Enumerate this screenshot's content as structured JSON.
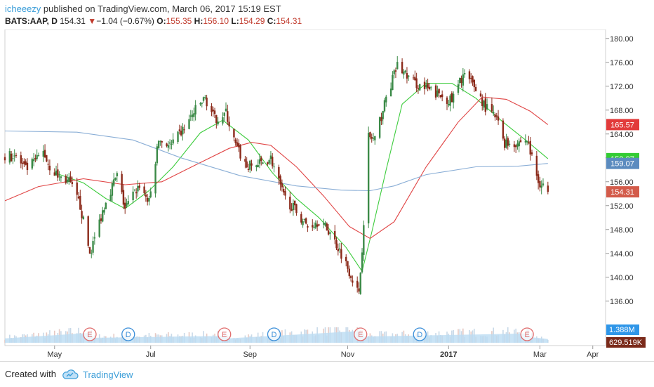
{
  "header": {
    "user": "icheeezy",
    "published_text": " published on TradingView.com, March 06, 2017 15:19 EST",
    "symbol": "BATS:AAP, D",
    "last": "154.31",
    "change": "−1.04 (−0.67%)",
    "open_label": "O:",
    "open": "155.35",
    "high_label": "H:",
    "high": "156.10",
    "low_label": "L:",
    "low": "154.29",
    "close_label": "C:",
    "close": "154.31"
  },
  "footer": {
    "created_with": "Created with",
    "brand": "TradingView"
  },
  "colors": {
    "up": "#3b8a47",
    "down": "#8b2a1a",
    "sma_short": "#3dcc3d",
    "sma_mid": "#e04444",
    "sma_long": "#8aaed6",
    "volume": "#bcdcf3"
  },
  "chart_data": {
    "type": "candlestick",
    "ylim": [
      133.5,
      181.5
    ],
    "yticks": [
      "180.00",
      "176.00",
      "172.00",
      "168.00",
      "164.00",
      "160.00",
      "156.00",
      "152.00",
      "148.00",
      "144.00",
      "140.00",
      "136.00"
    ],
    "xticks": [
      {
        "label": "May",
        "date": "2016-05-02"
      },
      {
        "label": "Jul",
        "date": "2016-07-01"
      },
      {
        "label": "Sep",
        "date": "2016-09-01"
      },
      {
        "label": "Nov",
        "date": "2016-11-01"
      },
      {
        "label": "2017",
        "date": "2017-01-03"
      },
      {
        "label": "Mar",
        "date": "2017-03-01"
      },
      {
        "label": "Apr",
        "date": "2017-04-03"
      }
    ],
    "price_labels": [
      {
        "text": "165.57",
        "value": 165.57,
        "color": "#e23b3b"
      },
      {
        "text": "159.87",
        "value": 159.87,
        "color": "#33cc33"
      },
      {
        "text": "159.07",
        "value": 159.07,
        "color": "#5b8bbf"
      },
      {
        "text": "154.31",
        "value": 154.31,
        "color": "#d35b4a"
      }
    ],
    "volume_labels": [
      {
        "text": "1.388M",
        "color": "#2f96e8"
      },
      {
        "text": "629.519K",
        "color": "#7a2a1a"
      }
    ],
    "events": [
      {
        "type": "E",
        "date": "2016-05-24"
      },
      {
        "type": "D",
        "date": "2016-06-17"
      },
      {
        "type": "E",
        "date": "2016-08-16"
      },
      {
        "type": "D",
        "date": "2016-09-16"
      },
      {
        "type": "E",
        "date": "2016-11-09"
      },
      {
        "type": "D",
        "date": "2016-12-16"
      },
      {
        "type": "E",
        "date": "2017-02-21"
      }
    ],
    "series": [
      {
        "name": "SMA short",
        "color": "#3dcc3d",
        "points": [
          [
            "2016-05-02",
            157.5
          ],
          [
            "2016-05-20",
            155.8
          ],
          [
            "2016-06-03",
            153.2
          ],
          [
            "2016-06-15",
            151.5
          ],
          [
            "2016-06-30",
            154.5
          ],
          [
            "2016-07-15",
            158.5
          ],
          [
            "2016-08-01",
            164.2
          ],
          [
            "2016-08-15",
            166.3
          ],
          [
            "2016-08-31",
            163.0
          ],
          [
            "2016-09-15",
            157.5
          ],
          [
            "2016-09-30",
            153.2
          ],
          [
            "2016-10-14",
            150.0
          ],
          [
            "2016-10-31",
            145.0
          ],
          [
            "2016-11-10",
            141.0
          ],
          [
            "2016-11-16",
            147.5
          ],
          [
            "2016-11-25",
            158.0
          ],
          [
            "2016-12-05",
            169.0
          ],
          [
            "2016-12-20",
            172.5
          ],
          [
            "2017-01-05",
            172.5
          ],
          [
            "2017-01-20",
            170.0
          ],
          [
            "2017-02-06",
            166.0
          ],
          [
            "2017-02-20",
            163.0
          ],
          [
            "2017-03-06",
            159.87
          ]
        ]
      },
      {
        "name": "SMA mid",
        "color": "#e04444",
        "points": [
          [
            "2016-04-01",
            152.8
          ],
          [
            "2016-04-22",
            155.2
          ],
          [
            "2016-05-20",
            156.5
          ],
          [
            "2016-06-15",
            155.5
          ],
          [
            "2016-07-08",
            156.0
          ],
          [
            "2016-07-29",
            158.8
          ],
          [
            "2016-08-19",
            161.6
          ],
          [
            "2016-09-02",
            162.6
          ],
          [
            "2016-09-14",
            162.1
          ],
          [
            "2016-09-30",
            158.5
          ],
          [
            "2016-10-17",
            153.6
          ],
          [
            "2016-11-02",
            148.5
          ],
          [
            "2016-11-15",
            146.5
          ],
          [
            "2016-11-30",
            149.3
          ],
          [
            "2016-12-20",
            158.5
          ],
          [
            "2017-01-09",
            166.0
          ],
          [
            "2017-01-24",
            170.2
          ],
          [
            "2017-02-08",
            169.8
          ],
          [
            "2017-02-23",
            167.8
          ],
          [
            "2017-03-06",
            165.57
          ]
        ]
      },
      {
        "name": "SMA long",
        "color": "#8aaed6",
        "points": [
          [
            "2016-04-01",
            164.5
          ],
          [
            "2016-05-16",
            164.3
          ],
          [
            "2016-06-20",
            163.0
          ],
          [
            "2016-07-20",
            160.0
          ],
          [
            "2016-08-26",
            157.0
          ],
          [
            "2016-09-30",
            155.3
          ],
          [
            "2016-10-28",
            154.6
          ],
          [
            "2016-11-15",
            154.5
          ],
          [
            "2016-11-30",
            155.3
          ],
          [
            "2016-12-20",
            157.2
          ],
          [
            "2017-01-20",
            158.5
          ],
          [
            "2017-02-15",
            158.6
          ],
          [
            "2017-03-06",
            159.07
          ]
        ]
      }
    ],
    "candles": {
      "start": "2016-04-01",
      "end": "2017-03-06",
      "anchors": [
        [
          "2016-04-01",
          160.0
        ],
        [
          "2016-04-07",
          160.5
        ],
        [
          "2016-04-14",
          158.0
        ],
        [
          "2016-04-20",
          159.5
        ],
        [
          "2016-04-25",
          161.0
        ],
        [
          "2016-04-29",
          158.5
        ],
        [
          "2016-05-04",
          157.0
        ],
        [
          "2016-05-11",
          156.0
        ],
        [
          "2016-05-18",
          152.0
        ],
        [
          "2016-05-24",
          144.0
        ],
        [
          "2016-05-27",
          146.5
        ],
        [
          "2016-06-03",
          153.0
        ],
        [
          "2016-06-10",
          157.0
        ],
        [
          "2016-06-15",
          151.5
        ],
        [
          "2016-06-24",
          155.5
        ],
        [
          "2016-06-30",
          152.5
        ],
        [
          "2016-07-06",
          163.0
        ],
        [
          "2016-07-14",
          162.0
        ],
        [
          "2016-07-22",
          165.0
        ],
        [
          "2016-07-29",
          168.0
        ],
        [
          "2016-08-04",
          170.0
        ],
        [
          "2016-08-10",
          166.5
        ],
        [
          "2016-08-17",
          167.5
        ],
        [
          "2016-08-23",
          162.0
        ],
        [
          "2016-08-30",
          158.5
        ],
        [
          "2016-09-07",
          159.0
        ],
        [
          "2016-09-14",
          160.0
        ],
        [
          "2016-09-22",
          153.5
        ],
        [
          "2016-09-30",
          151.0
        ],
        [
          "2016-10-07",
          148.5
        ],
        [
          "2016-10-14",
          149.5
        ],
        [
          "2016-10-21",
          147.5
        ],
        [
          "2016-10-28",
          144.0
        ],
        [
          "2016-11-03",
          140.5
        ],
        [
          "2016-11-08",
          137.0
        ],
        [
          "2016-11-10",
          145.0
        ],
        [
          "2016-11-14",
          163.5
        ],
        [
          "2016-11-18",
          163.0
        ],
        [
          "2016-11-25",
          170.0
        ],
        [
          "2016-12-02",
          175.5
        ],
        [
          "2016-12-07",
          174.0
        ],
        [
          "2016-12-13",
          172.5
        ],
        [
          "2016-12-20",
          171.5
        ],
        [
          "2016-12-28",
          170.5
        ],
        [
          "2017-01-05",
          169.5
        ],
        [
          "2017-01-12",
          174.0
        ],
        [
          "2017-01-19",
          172.0
        ],
        [
          "2017-01-26",
          168.5
        ],
        [
          "2017-02-02",
          166.5
        ],
        [
          "2017-02-07",
          162.5
        ],
        [
          "2017-02-14",
          162.5
        ],
        [
          "2017-02-21",
          163.0
        ],
        [
          "2017-02-24",
          160.0
        ],
        [
          "2017-02-28",
          156.0
        ],
        [
          "2017-03-03",
          155.5
        ],
        [
          "2017-03-06",
          154.31
        ]
      ]
    },
    "volume_profile": [
      [
        "2016-04-01",
        0.35
      ],
      [
        "2016-05-24",
        0.8
      ],
      [
        "2016-05-26",
        0.4
      ],
      [
        "2016-08-15",
        0.55
      ],
      [
        "2016-08-18",
        0.35
      ],
      [
        "2016-11-09",
        0.95
      ],
      [
        "2016-11-11",
        0.5
      ],
      [
        "2017-02-21",
        0.75
      ],
      [
        "2017-02-24",
        0.45
      ],
      [
        "2017-03-06",
        0.3
      ]
    ]
  }
}
